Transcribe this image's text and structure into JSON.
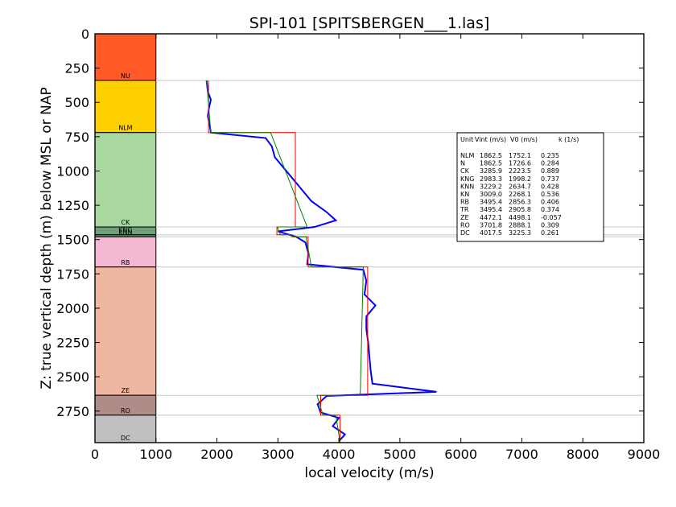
{
  "chart_data": {
    "type": "line",
    "title": "SPI-101 [SPITSBERGEN___1.las]",
    "xlabel": "local velocity (m/s)",
    "ylabel": "Z: true vertical depth (m) below MSL or NAP",
    "xlim": [
      0,
      9000
    ],
    "ylim": [
      2980,
      0
    ],
    "xticks": [
      "0",
      "1000",
      "2000",
      "3000",
      "4000",
      "5000",
      "6000",
      "7000",
      "8000",
      "9000"
    ],
    "yticks": [
      "0",
      "250",
      "500",
      "750",
      "1000",
      "1250",
      "1500",
      "1750",
      "2000",
      "2250",
      "2500",
      "2750"
    ],
    "units": [
      {
        "name": "NU",
        "top": 0,
        "base": 340,
        "color": "#ff5a28"
      },
      {
        "name": "NLM",
        "top": 340,
        "base": 720,
        "color": "#ffd000"
      },
      {
        "name": "CK",
        "top": 720,
        "base": 1408,
        "color": "#a8d8a0"
      },
      {
        "name": "KNG",
        "top": 1408,
        "base": 1465,
        "color": "#6f9f7c"
      },
      {
        "name": "KNN",
        "top": 1465,
        "base": 1480,
        "color": "#5f8d6c"
      },
      {
        "name": "RB",
        "top": 1480,
        "base": 1700,
        "color": "#f5b8d2"
      },
      {
        "name": "ZE",
        "top": 1700,
        "base": 2635,
        "color": "#f0b7a0"
      },
      {
        "name": "RO",
        "top": 2635,
        "base": 2780,
        "color": "#b08c88"
      },
      {
        "name": "DC",
        "top": 2780,
        "base": 2980,
        "color": "#c0c0c0"
      }
    ],
    "boundaries": [
      340,
      720,
      1408,
      1465,
      1480,
      1700,
      2635,
      2780
    ],
    "legend": {
      "placement": "right",
      "headers": [
        "Unit",
        "Vint (m/s)",
        "V0 (m/s)",
        "k (1/s)"
      ],
      "rows": [
        {
          "unit": "NLM",
          "vint": "1862.5",
          "v0": "1752.1",
          "k": "0.235"
        },
        {
          "unit": "N",
          "vint": "1862.5",
          "v0": "1726.6",
          "k": "0.284"
        },
        {
          "unit": "CK",
          "vint": "3285.9",
          "v0": "2223.5",
          "k": "0.889"
        },
        {
          "unit": "KNG",
          "vint": "2983.3",
          "v0": "1998.2",
          "k": "0.737"
        },
        {
          "unit": "KNN",
          "vint": "3229.2",
          "v0": "2634.7",
          "k": "0.428"
        },
        {
          "unit": "KN",
          "vint": "3009.0",
          "v0": "2268.1",
          "k": "0.536"
        },
        {
          "unit": "RB",
          "vint": "3495.4",
          "v0": "2856.3",
          "k": "0.406"
        },
        {
          "unit": "TR",
          "vint": "3495.4",
          "v0": "2905.8",
          "k": "0.374"
        },
        {
          "unit": "ZE",
          "vint": "4472.1",
          "v0": "4498.1",
          "k": "-0.057"
        },
        {
          "unit": "RO",
          "vint": "3701.8",
          "v0": "2888.1",
          "k": "0.309"
        },
        {
          "unit": "DC",
          "vint": "4017.5",
          "v0": "3225.3",
          "k": "0.261"
        }
      ]
    },
    "interval_velocity": [
      {
        "top": 340,
        "base": 720,
        "v": 1862.5
      },
      {
        "top": 720,
        "base": 1408,
        "v": 3285.9
      },
      {
        "top": 1408,
        "base": 1465,
        "v": 2983.3
      },
      {
        "top": 1465,
        "base": 1480,
        "v": 3229.2
      },
      {
        "top": 1480,
        "base": 1700,
        "v": 3495.4
      },
      {
        "top": 1700,
        "base": 2635,
        "v": 4472.1
      },
      {
        "top": 2635,
        "base": 2780,
        "v": 3701.8
      },
      {
        "top": 2780,
        "base": 2980,
        "v": 4017.5
      }
    ],
    "linear_fit": [
      {
        "top": 340,
        "base": 720,
        "v_top": 1830,
        "v_base": 1900
      },
      {
        "top": 720,
        "base": 1408,
        "v_top": 2880,
        "v_base": 3480
      },
      {
        "top": 1408,
        "base": 1465,
        "v_top": 2990,
        "v_base": 3040
      },
      {
        "top": 1465,
        "base": 1480,
        "v_top": 3230,
        "v_base": 3240
      },
      {
        "top": 1480,
        "base": 1700,
        "v_top": 3460,
        "v_base": 3550
      },
      {
        "top": 1700,
        "base": 2635,
        "v_top": 4400,
        "v_base": 4350
      },
      {
        "top": 2635,
        "base": 2780,
        "v_top": 3640,
        "v_base": 3740
      },
      {
        "top": 2780,
        "base": 2980,
        "v_top": 3950,
        "v_base": 4020
      }
    ],
    "log_trend": [
      {
        "z": 340,
        "v": 1830
      },
      {
        "z": 420,
        "v": 1850
      },
      {
        "z": 480,
        "v": 1900
      },
      {
        "z": 540,
        "v": 1870
      },
      {
        "z": 600,
        "v": 1850
      },
      {
        "z": 660,
        "v": 1880
      },
      {
        "z": 720,
        "v": 1900
      },
      {
        "z": 760,
        "v": 2800
      },
      {
        "z": 820,
        "v": 2900
      },
      {
        "z": 900,
        "v": 2950
      },
      {
        "z": 980,
        "v": 3100
      },
      {
        "z": 1060,
        "v": 3250
      },
      {
        "z": 1140,
        "v": 3400
      },
      {
        "z": 1220,
        "v": 3550
      },
      {
        "z": 1300,
        "v": 3800
      },
      {
        "z": 1360,
        "v": 3950
      },
      {
        "z": 1408,
        "v": 3600
      },
      {
        "z": 1440,
        "v": 3000
      },
      {
        "z": 1480,
        "v": 3300
      },
      {
        "z": 1520,
        "v": 3450
      },
      {
        "z": 1600,
        "v": 3500
      },
      {
        "z": 1680,
        "v": 3480
      },
      {
        "z": 1720,
        "v": 4400
      },
      {
        "z": 1800,
        "v": 4450
      },
      {
        "z": 1900,
        "v": 4420
      },
      {
        "z": 1980,
        "v": 4600
      },
      {
        "z": 2060,
        "v": 4450
      },
      {
        "z": 2150,
        "v": 4450
      },
      {
        "z": 2250,
        "v": 4480
      },
      {
        "z": 2350,
        "v": 4500
      },
      {
        "z": 2450,
        "v": 4520
      },
      {
        "z": 2550,
        "v": 4550
      },
      {
        "z": 2610,
        "v": 5600
      },
      {
        "z": 2640,
        "v": 3800
      },
      {
        "z": 2700,
        "v": 3650
      },
      {
        "z": 2760,
        "v": 3700
      },
      {
        "z": 2800,
        "v": 4000
      },
      {
        "z": 2860,
        "v": 3900
      },
      {
        "z": 2920,
        "v": 4100
      },
      {
        "z": 2970,
        "v": 4000
      }
    ],
    "colors": {
      "log": "#0000ff",
      "interval": "#ff0000",
      "fit": "#008000",
      "grid": "#c8c8c8"
    }
  }
}
